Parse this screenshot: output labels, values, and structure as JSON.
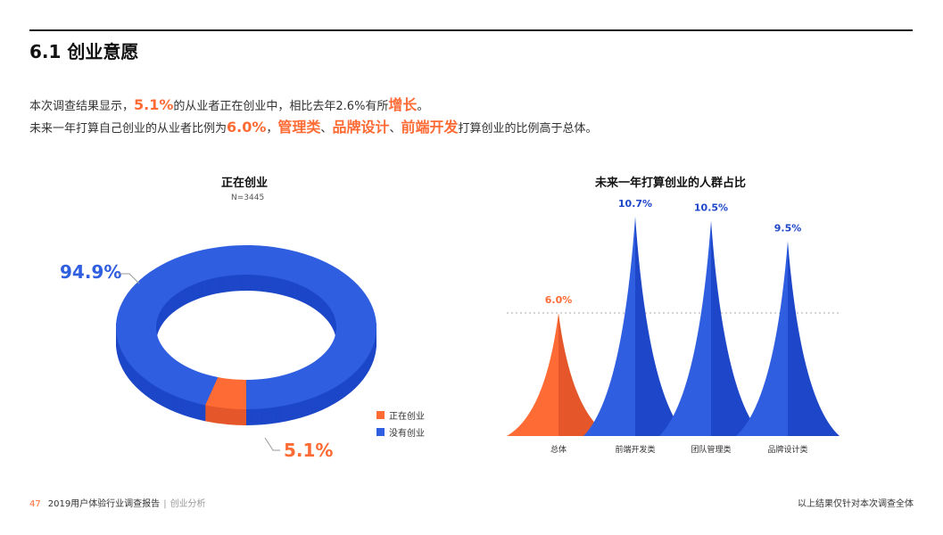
{
  "header": {
    "title": "6.1 创业意愿"
  },
  "intro": {
    "line1_a": "本次调查结果显示，",
    "line1_hl1": "5.1%",
    "line1_b": "的从业者正在创业中，相比去年2.6%有所",
    "line1_hl2": "增长",
    "line1_c": "。",
    "line2_a": "未来一年打算自己创业的从业者比例为",
    "line2_hl1": "6.0%",
    "line2_b": "，",
    "line2_hl2": "管理类",
    "line2_c": "、",
    "line2_hl3": "品牌设计",
    "line2_d": "、",
    "line2_hl4": "前端开发",
    "line2_e": "打算创业的比例高于总体。"
  },
  "colors": {
    "orange": "#ff6b35",
    "blue": "#2f5fe0",
    "dark_blue": "#1d47c8"
  },
  "chart_data": [
    {
      "type": "pie",
      "title": "正在创业",
      "subtitle": "N=3445",
      "slices": [
        {
          "label": "正在创业",
          "value": 5.1,
          "display": "5.1%",
          "color": "#ff6b35"
        },
        {
          "label": "没有创业",
          "value": 94.9,
          "display": "94.9%",
          "color": "#2f5fe0"
        }
      ],
      "legend": [
        "正在创业",
        "没有创业"
      ],
      "legend_position": "bottom-right"
    },
    {
      "type": "bar",
      "title": "未来一年打算创业的人群占比",
      "categories": [
        "总体",
        "前端开发类",
        "团队管理类",
        "品牌设计类"
      ],
      "values": [
        6.0,
        10.7,
        10.5,
        9.5
      ],
      "labels": [
        "6.0%",
        "10.7%",
        "10.5%",
        "9.5%"
      ],
      "reference_line": 6.0,
      "ylim": [
        0,
        12
      ]
    }
  ],
  "footer": {
    "page": "47",
    "report": "2019用户体验行业调查报告",
    "separator": "|",
    "section": "创业分析",
    "note": "以上结果仅针对本次调查全体"
  }
}
